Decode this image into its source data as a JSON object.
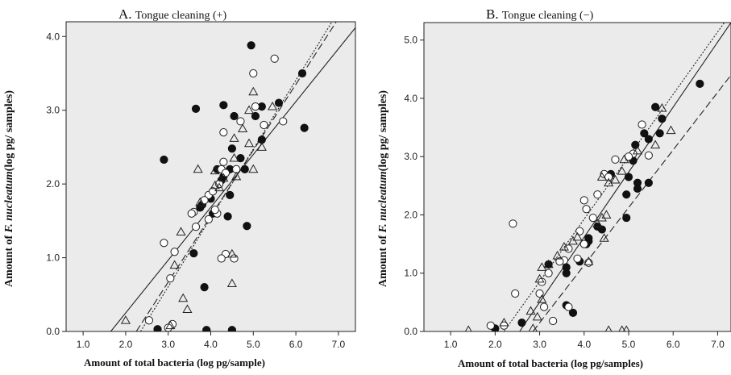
{
  "chart_data": [
    {
      "type": "scatter",
      "panel_letter": "A.",
      "title": "Tongue cleaning (+)",
      "xlabel": "Amount of total bacteria (log pg/sample)",
      "ylabel_prefix": "Amount of ",
      "ylabel_species": "F. nucleatum",
      "ylabel_suffix": "(log pg/ samples)",
      "xlim": [
        0.6,
        7.4
      ],
      "ylim": [
        0.0,
        4.2
      ],
      "xticks": [
        "1.0",
        "2.0",
        "3.0",
        "4.0",
        "5.0",
        "6.0",
        "7.0"
      ],
      "yticks": [
        "0.0",
        "1.0",
        "2.0",
        "3.0",
        "4.0"
      ],
      "grid": false,
      "plot_background": "#ebebeb",
      "series": [
        {
          "marker": "filled-circle",
          "points": [
            [
              2.9,
              2.33
            ],
            [
              3.65,
              3.02
            ],
            [
              4.3,
              3.07
            ],
            [
              4.95,
              3.88
            ],
            [
              6.15,
              3.5
            ],
            [
              6.2,
              2.76
            ],
            [
              5.2,
              2.6
            ],
            [
              5.05,
              2.92
            ],
            [
              4.55,
              2.92
            ],
            [
              5.6,
              3.1
            ],
            [
              4.5,
              2.48
            ],
            [
              4.8,
              2.2
            ],
            [
              4.45,
              2.2
            ],
            [
              4.3,
              2.1
            ],
            [
              4.15,
              2.2
            ],
            [
              4.0,
              1.8
            ],
            [
              3.8,
              1.72
            ],
            [
              3.75,
              1.68
            ],
            [
              4.45,
              1.85
            ],
            [
              4.05,
              1.6
            ],
            [
              4.4,
              1.56
            ],
            [
              3.6,
              1.06
            ],
            [
              4.85,
              1.43
            ],
            [
              3.85,
              0.6
            ],
            [
              2.75,
              0.03
            ],
            [
              3.9,
              0.02
            ],
            [
              4.5,
              0.02
            ],
            [
              5.2,
              3.05
            ],
            [
              4.7,
              2.35
            ],
            [
              4.25,
              2.05
            ]
          ],
          "fit": [
            [
              1.65,
              0.0
            ],
            [
              7.4,
              4.12
            ]
          ]
        },
        {
          "marker": "open-circle",
          "points": [
            [
              5.5,
              3.7
            ],
            [
              5.0,
              3.5
            ],
            [
              5.05,
              3.05
            ],
            [
              4.3,
              2.7
            ],
            [
              4.7,
              2.85
            ],
            [
              5.7,
              2.85
            ],
            [
              5.25,
              2.8
            ],
            [
              4.3,
              2.3
            ],
            [
              4.25,
              2.2
            ],
            [
              4.35,
              2.15
            ],
            [
              4.6,
              2.2
            ],
            [
              4.2,
              2.0
            ],
            [
              3.95,
              1.85
            ],
            [
              4.05,
              1.9
            ],
            [
              3.85,
              1.78
            ],
            [
              3.6,
              1.62
            ],
            [
              3.55,
              1.6
            ],
            [
              4.15,
              1.6
            ],
            [
              3.65,
              1.42
            ],
            [
              3.95,
              1.52
            ],
            [
              2.9,
              1.2
            ],
            [
              3.15,
              1.08
            ],
            [
              4.35,
              1.05
            ],
            [
              4.25,
              0.99
            ],
            [
              4.55,
              0.99
            ],
            [
              3.05,
              0.72
            ],
            [
              2.55,
              0.15
            ],
            [
              3.1,
              0.1
            ],
            [
              4.1,
              1.65
            ],
            [
              3.0,
              0.05
            ]
          ],
          "fit": [
            [
              2.35,
              0.0
            ],
            [
              6.85,
              4.2
            ]
          ]
        },
        {
          "marker": "open-triangle",
          "points": [
            [
              5.0,
              3.25
            ],
            [
              5.45,
              3.05
            ],
            [
              4.9,
              3.0
            ],
            [
              4.55,
              2.62
            ],
            [
              4.9,
              2.55
            ],
            [
              5.2,
              2.5
            ],
            [
              4.55,
              2.35
            ],
            [
              3.7,
              2.2
            ],
            [
              4.1,
              2.18
            ],
            [
              4.3,
              2.08
            ],
            [
              4.6,
              2.1
            ],
            [
              4.1,
              1.98
            ],
            [
              4.2,
              1.95
            ],
            [
              3.75,
              1.75
            ],
            [
              3.3,
              1.35
            ],
            [
              3.15,
              0.9
            ],
            [
              4.5,
              0.65
            ],
            [
              3.35,
              0.45
            ],
            [
              3.45,
              0.3
            ],
            [
              2.0,
              0.15
            ],
            [
              3.05,
              0.08
            ],
            [
              4.5,
              1.05
            ],
            [
              5.0,
              2.2
            ],
            [
              4.75,
              2.75
            ]
          ],
          "fit": [
            [
              2.25,
              0.0
            ],
            [
              6.95,
              4.2
            ]
          ]
        }
      ]
    },
    {
      "type": "scatter",
      "panel_letter": "B.",
      "title": "Tongue cleaning (−)",
      "xlabel": "Amount of total bacteria (log pg/samples)",
      "ylabel_prefix": "Amount of ",
      "ylabel_species": "F. nucleatum",
      "ylabel_suffix": "(log pg/ samples)",
      "xlim": [
        0.4,
        7.3
      ],
      "ylim": [
        0.0,
        5.3
      ],
      "xticks": [
        "1.0",
        "2.0",
        "3.0",
        "4.0",
        "5.0",
        "6.0",
        "7.0"
      ],
      "yticks": [
        "0.0",
        "1.0",
        "2.0",
        "3.0",
        "4.0",
        "5.0"
      ],
      "grid": false,
      "plot_background": "#ebebeb",
      "series": [
        {
          "marker": "filled-circle",
          "points": [
            [
              6.6,
              4.25
            ],
            [
              5.6,
              3.85
            ],
            [
              5.75,
              3.65
            ],
            [
              5.7,
              3.4
            ],
            [
              5.35,
              3.4
            ],
            [
              5.45,
              3.3
            ],
            [
              5.15,
              3.2
            ],
            [
              5.1,
              2.93
            ],
            [
              4.6,
              2.7
            ],
            [
              5.0,
              2.65
            ],
            [
              4.95,
              2.35
            ],
            [
              5.2,
              2.55
            ],
            [
              5.45,
              2.55
            ],
            [
              5.2,
              2.45
            ],
            [
              4.3,
              1.8
            ],
            [
              4.4,
              1.75
            ],
            [
              4.95,
              1.95
            ],
            [
              4.1,
              1.55
            ],
            [
              4.05,
              1.5
            ],
            [
              3.9,
              1.2
            ],
            [
              3.6,
              1.1
            ],
            [
              3.6,
              1.0
            ],
            [
              3.2,
              1.15
            ],
            [
              3.6,
              0.45
            ],
            [
              3.75,
              0.32
            ],
            [
              2.6,
              0.15
            ],
            [
              2.0,
              0.05
            ],
            [
              4.1,
              1.6
            ]
          ],
          "fit": [
            [
              2.55,
              0.0
            ],
            [
              7.3,
              5.3
            ]
          ]
        },
        {
          "marker": "open-circle",
          "points": [
            [
              5.3,
              3.55
            ],
            [
              5.1,
              3.05
            ],
            [
              5.0,
              3.0
            ],
            [
              4.7,
              2.95
            ],
            [
              5.45,
              3.02
            ],
            [
              4.45,
              2.7
            ],
            [
              4.55,
              2.65
            ],
            [
              4.3,
              2.35
            ],
            [
              4.0,
              2.25
            ],
            [
              4.05,
              2.1
            ],
            [
              4.2,
              1.95
            ],
            [
              3.9,
              1.72
            ],
            [
              4.0,
              1.5
            ],
            [
              3.65,
              1.42
            ],
            [
              3.85,
              1.25
            ],
            [
              3.55,
              1.22
            ],
            [
              3.45,
              1.2
            ],
            [
              4.1,
              1.18
            ],
            [
              3.2,
              1.0
            ],
            [
              3.05,
              0.85
            ],
            [
              3.0,
              0.65
            ],
            [
              2.4,
              1.85
            ],
            [
              2.45,
              0.65
            ],
            [
              3.65,
              0.42
            ],
            [
              2.2,
              0.1
            ],
            [
              1.9,
              0.1
            ],
            [
              3.3,
              0.18
            ],
            [
              3.1,
              0.42
            ]
          ],
          "fit": [
            [
              2.2,
              0.0
            ],
            [
              7.15,
              5.3
            ]
          ]
        },
        {
          "marker": "open-triangle",
          "points": [
            [
              5.75,
              3.83
            ],
            [
              5.95,
              3.45
            ],
            [
              5.6,
              3.2
            ],
            [
              5.2,
              3.1
            ],
            [
              4.9,
              2.95
            ],
            [
              4.85,
              2.75
            ],
            [
              4.4,
              2.65
            ],
            [
              4.7,
              2.6
            ],
            [
              4.55,
              2.55
            ],
            [
              4.5,
              2.0
            ],
            [
              4.4,
              1.95
            ],
            [
              4.45,
              1.6
            ],
            [
              4.3,
              1.85
            ],
            [
              3.85,
              1.62
            ],
            [
              3.75,
              1.55
            ],
            [
              3.55,
              1.45
            ],
            [
              3.4,
              1.3
            ],
            [
              3.2,
              1.15
            ],
            [
              3.05,
              1.1
            ],
            [
              3.0,
              0.9
            ],
            [
              3.05,
              0.55
            ],
            [
              2.8,
              0.35
            ],
            [
              2.95,
              0.25
            ],
            [
              2.2,
              0.15
            ],
            [
              2.85,
              0.05
            ],
            [
              1.4,
              0.02
            ],
            [
              4.55,
              0.02
            ],
            [
              4.85,
              0.02
            ],
            [
              4.95,
              0.02
            ],
            [
              4.1,
              1.2
            ]
          ],
          "fit": [
            [
              2.85,
              0.0
            ],
            [
              7.3,
              4.4
            ]
          ]
        }
      ]
    }
  ]
}
